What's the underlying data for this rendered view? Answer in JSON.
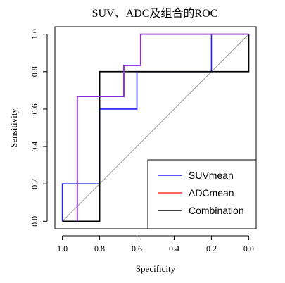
{
  "chart_data": {
    "type": "line",
    "title": "SUV、ADC及组合的ROC",
    "xlabel": "Specificity",
    "ylabel": "Sensitivity",
    "xlim": [
      1.04,
      -0.04
    ],
    "ylim": [
      -0.04,
      1.04
    ],
    "x_reversed": true,
    "x_ticks": [
      1.0,
      0.8,
      0.6,
      0.4,
      0.2,
      0.0
    ],
    "x_tick_labels": [
      "1.0",
      "0.8",
      "0.6",
      "0.4",
      "0.2",
      "0.0"
    ],
    "y_ticks": [
      0.0,
      0.2,
      0.4,
      0.6,
      0.8,
      1.0
    ],
    "y_tick_labels": [
      "0.0",
      "0.2",
      "0.4",
      "0.6",
      "0.8",
      "1.0"
    ],
    "grid": false,
    "legend_position": "bottom-right",
    "reference_line": {
      "x": [
        1.0,
        0.0
      ],
      "y": [
        0.0,
        1.0
      ],
      "color": "#a0a0a0"
    },
    "series": [
      {
        "name": "SUVmean",
        "color": "#1f1fff",
        "x": [
          1.0,
          1.0,
          0.8,
          0.8,
          0.6,
          0.6,
          0.2,
          0.2,
          0.0
        ],
        "y": [
          0.0,
          0.2,
          0.2,
          0.6,
          0.6,
          0.8,
          0.8,
          1.0,
          1.0
        ]
      },
      {
        "name": "ADCmean",
        "color": "#ff3333",
        "x": [
          0.92,
          0.92,
          0.67,
          0.67,
          0.58,
          0.58,
          0.0
        ],
        "y": [
          0.0,
          0.667,
          0.667,
          0.833,
          0.833,
          1.0,
          1.0
        ]
      },
      {
        "name": "Combination",
        "color": "#000000",
        "x": [
          1.0,
          0.8,
          0.8,
          0.0,
          0.0
        ],
        "y": [
          0.0,
          0.0,
          0.8,
          0.8,
          1.0
        ]
      }
    ],
    "overlay": {
      "note_color": "#8a2be2",
      "x": [
        0.92,
        0.92,
        0.67,
        0.67,
        0.58,
        0.58,
        0.0
      ],
      "y": [
        0.0,
        0.667,
        0.667,
        0.833,
        0.833,
        1.0,
        1.0
      ]
    }
  }
}
